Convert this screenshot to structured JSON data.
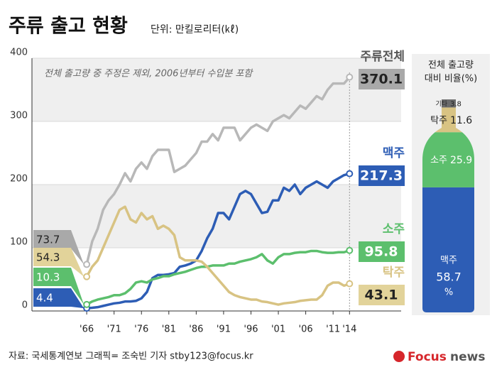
{
  "chart_data": [
    {
      "type": "line",
      "title": "주류 출고 현황",
      "subtitle": "단위: 만킬로리터(㎘)",
      "note": "전체 출고량 중 주정은 제외, 2006년부터 수입분 포함",
      "x": [
        1966,
        1967,
        1968,
        1969,
        1970,
        1971,
        1972,
        1973,
        1974,
        1975,
        1976,
        1977,
        1978,
        1979,
        1980,
        1981,
        1982,
        1983,
        1984,
        1985,
        1986,
        1987,
        1988,
        1989,
        1990,
        1991,
        1992,
        1993,
        1994,
        1995,
        1996,
        1997,
        1998,
        1999,
        2000,
        2001,
        2002,
        2003,
        2004,
        2005,
        2006,
        2007,
        2008,
        2009,
        2010,
        2011,
        2012,
        2013,
        2014
      ],
      "xlim": [
        1956,
        2015
      ],
      "xticks": [
        {
          "value": 1966,
          "label": "'66"
        },
        {
          "value": 1971,
          "label": "'71"
        },
        {
          "value": 1976,
          "label": "'76"
        },
        {
          "value": 1981,
          "label": "'81"
        },
        {
          "value": 1986,
          "label": "'86"
        },
        {
          "value": 1991,
          "label": "'91"
        },
        {
          "value": 1996,
          "label": "'96"
        },
        {
          "value": 2001,
          "label": "'01"
        },
        {
          "value": 2006,
          "label": "'06"
        },
        {
          "value": 2011,
          "label": "'11"
        },
        {
          "value": 2014,
          "label": "'14"
        }
      ],
      "ylim": [
        0,
        400
      ],
      "yticks": [
        0,
        100,
        200,
        300,
        400
      ],
      "grid": true,
      "series": [
        {
          "name": "주류전체",
          "color": "#b8b8b8",
          "values": [
            73.7,
            110,
            130,
            160,
            175,
            185,
            200,
            218,
            205,
            225,
            235,
            225,
            245,
            255,
            255,
            255,
            220,
            225,
            230,
            240,
            250,
            268,
            268,
            280,
            270,
            290,
            290,
            290,
            270,
            280,
            290,
            295,
            290,
            285,
            300,
            305,
            310,
            305,
            315,
            325,
            320,
            330,
            340,
            335,
            350,
            360,
            360,
            360,
            370.1
          ]
        },
        {
          "name": "맥주",
          "color": "#2d5db5",
          "values": [
            4.4,
            5,
            6,
            8,
            10,
            12,
            13,
            15,
            15,
            16,
            20,
            30,
            52,
            57,
            57,
            58,
            60,
            70,
            72,
            75,
            80,
            95,
            115,
            130,
            155,
            155,
            145,
            165,
            185,
            190,
            185,
            170,
            155,
            157,
            175,
            175,
            195,
            190,
            200,
            185,
            195,
            200,
            205,
            200,
            195,
            205,
            210,
            215,
            217.3
          ]
        },
        {
          "name": "소주",
          "color": "#5cbf6d",
          "values": [
            10.3,
            15,
            18,
            20,
            22,
            25,
            25,
            28,
            35,
            45,
            47,
            45,
            50,
            52,
            55,
            55,
            58,
            60,
            62,
            65,
            68,
            70,
            70,
            72,
            72,
            72,
            75,
            75,
            78,
            80,
            82,
            85,
            90,
            80,
            75,
            85,
            90,
            90,
            92,
            93,
            93,
            95,
            95,
            93,
            92,
            92,
            93,
            93,
            95.8
          ]
        },
        {
          "name": "탁주",
          "color": "#d8c383",
          "values": [
            54.3,
            70,
            80,
            100,
            120,
            140,
            160,
            165,
            145,
            140,
            155,
            145,
            150,
            130,
            135,
            130,
            120,
            85,
            80,
            80,
            80,
            78,
            70,
            60,
            50,
            40,
            30,
            25,
            22,
            20,
            18,
            18,
            15,
            14,
            12,
            10,
            12,
            13,
            14,
            16,
            17,
            18,
            18,
            25,
            40,
            45,
            45,
            40,
            43.1
          ]
        }
      ]
    },
    {
      "type": "bar",
      "stacked": true,
      "title_lines": [
        "전체 출고량",
        "대비 비율(%)"
      ],
      "categories": [
        "맥주",
        "소주",
        "탁주",
        "기타"
      ],
      "values": [
        58.7,
        25.9,
        11.6,
        3.8
      ],
      "colors": [
        "#2d5db5",
        "#5cbf6d",
        "#d8c383",
        "#6b6b6b"
      ],
      "percent_sign": "%"
    }
  ],
  "source": "자료: 국세통계연보   그래픽= 조숙빈 기자 stby123@focus.kr",
  "logo": {
    "first": "Focus",
    "second": "news"
  }
}
